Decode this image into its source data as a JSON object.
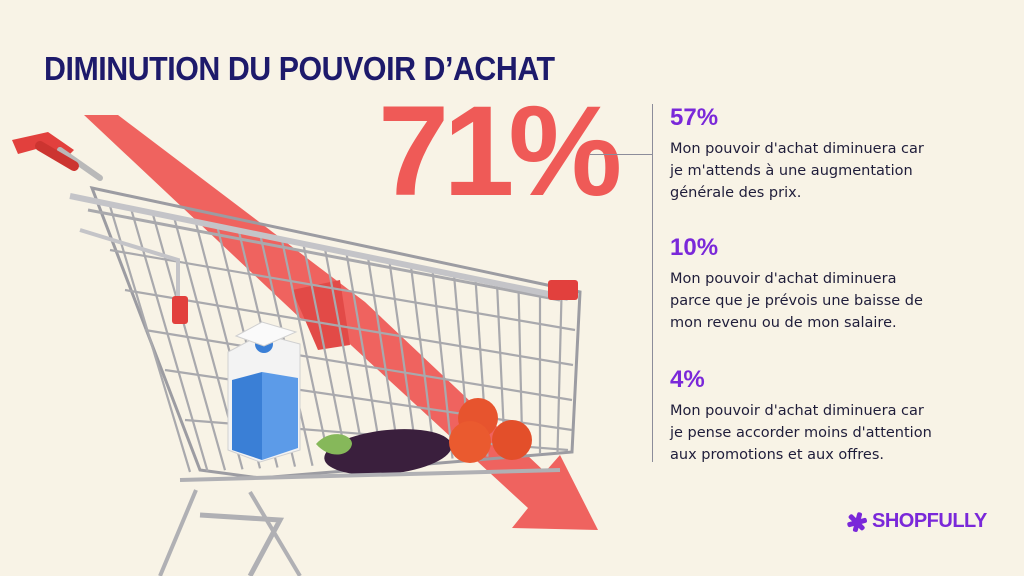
{
  "title": "DIMINUTION DU POUVOIR D’ACHAT",
  "headline_percent": "71%",
  "stats": [
    {
      "value": "57%",
      "text": "Mon pouvoir d'achat diminuera car\nje m'attends à une augmentation\ngénérale des prix."
    },
    {
      "value": "10%",
      "text": "Mon pouvoir d'achat diminuera\nparce que je prévois une baisse de\nmon revenu ou de mon salaire."
    },
    {
      "value": "4%",
      "text": "Mon pouvoir d'achat diminuera car\nje pense accorder moins d'attention\naux promotions et aux offres."
    }
  ],
  "brand": {
    "name": "SHOPFULLY",
    "icon": "asterisk-logo-icon",
    "color": "#7a28d9"
  },
  "colors": {
    "background": "#f8f3e6",
    "title": "#1d1a6b",
    "accent_red": "#ef5a57",
    "accent_purple": "#7a28d9"
  },
  "illustration": {
    "subject": "shopping-cart-with-groceries",
    "arrow": "downward-trend-arrow"
  }
}
